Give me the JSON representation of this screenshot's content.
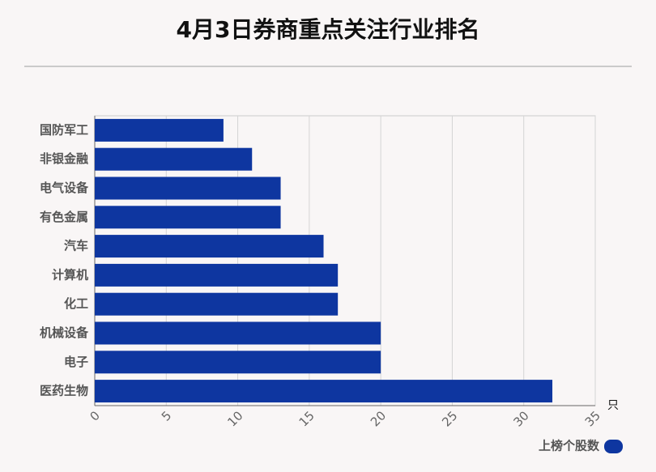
{
  "chart_data": {
    "type": "bar",
    "orientation": "horizontal",
    "title": "4月3日券商重点关注行业排名",
    "categories": [
      "国防军工",
      "非银金融",
      "电气设备",
      "有色金属",
      "汽车",
      "计算机",
      "化工",
      "机械设备",
      "电子",
      "医药生物"
    ],
    "series": [
      {
        "name": "上榜个股数",
        "color": "#0e36a0",
        "values": [
          9,
          11,
          13,
          13,
          16,
          17,
          17,
          20,
          20,
          32
        ]
      }
    ],
    "x_unit": "只",
    "xlim": [
      0,
      35
    ],
    "xticks": [
      0,
      5,
      10,
      15,
      20,
      25,
      30,
      35
    ],
    "grid": true
  }
}
